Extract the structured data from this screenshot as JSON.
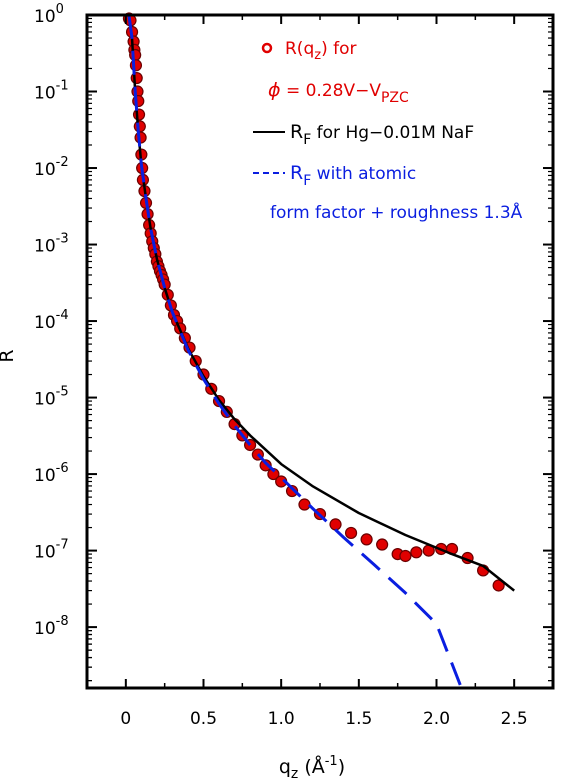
{
  "chart_data": {
    "type": "scatter",
    "xlabel": {
      "main": "q",
      "sub": "z",
      "unit_open": " (Å",
      "unit_sup": "-1",
      "unit_close": ")"
    },
    "ylabel": "R",
    "xlim": [
      -0.25,
      2.75
    ],
    "ylim": [
      1.6e-09,
      1
    ],
    "yscale": "log",
    "x_ticks": [
      0,
      0.5,
      1.0,
      1.5,
      2.0,
      2.5
    ],
    "x_tick_labels": [
      "0",
      "0.5",
      "1.0",
      "1.5",
      "2.0",
      "2.5"
    ],
    "y_ticks": [
      {
        "value": 1,
        "base": "10",
        "exp": "0"
      },
      {
        "value": 0.1,
        "base": "10",
        "exp": "-1"
      },
      {
        "value": 0.01,
        "base": "10",
        "exp": "-2"
      },
      {
        "value": 0.001,
        "base": "10",
        "exp": "-3"
      },
      {
        "value": 0.0001,
        "base": "10",
        "exp": "-4"
      },
      {
        "value": 1e-05,
        "base": "10",
        "exp": "-5"
      },
      {
        "value": 1e-06,
        "base": "10",
        "exp": "-6"
      },
      {
        "value": 1e-07,
        "base": "10",
        "exp": "-7"
      },
      {
        "value": 1e-08,
        "base": "10",
        "exp": "-8"
      }
    ],
    "legend": {
      "placement": "top-right",
      "entries": [
        {
          "marker": "circle",
          "color": "#e00000",
          "line1": {
            "pre": "R(q",
            "sub": "z",
            "post": ") for"
          },
          "line2": {
            "phi": "ϕ",
            "pre": " = 0.28V−V",
            "sub": "PZC"
          }
        },
        {
          "marker": "solid-line",
          "color": "#000000",
          "pre": "R",
          "sub": "F",
          "post": " for Hg−0.01M NaF"
        },
        {
          "marker": "dashed-line",
          "color": "#0a1ee0",
          "pre": "R",
          "sub": "F",
          "post": " with atomic",
          "line2": "form factor + roughness 1.3Å"
        }
      ]
    },
    "series": [
      {
        "kind": "points",
        "color": "#e00000",
        "x": [
          0.02,
          0.03,
          0.04,
          0.05,
          0.055,
          0.06,
          0.065,
          0.07,
          0.075,
          0.08,
          0.085,
          0.09,
          0.095,
          0.1,
          0.105,
          0.11,
          0.12,
          0.13,
          0.14,
          0.15,
          0.16,
          0.17,
          0.18,
          0.19,
          0.2,
          0.21,
          0.22,
          0.23,
          0.24,
          0.25,
          0.27,
          0.29,
          0.31,
          0.33,
          0.35,
          0.38,
          0.41,
          0.45,
          0.5,
          0.55,
          0.6,
          0.65,
          0.7,
          0.75,
          0.8,
          0.85,
          0.9,
          0.95,
          1.0,
          1.07,
          1.15,
          1.25,
          1.35,
          1.45,
          1.55,
          1.65,
          1.75,
          1.8,
          1.87,
          1.95,
          2.03,
          2.1,
          2.2,
          2.3,
          2.4
        ],
        "y": [
          0.9,
          0.85,
          0.6,
          0.45,
          0.35,
          0.3,
          0.22,
          0.15,
          0.1,
          0.075,
          0.05,
          0.035,
          0.025,
          0.015,
          0.01,
          0.007,
          0.005,
          0.0035,
          0.0025,
          0.0018,
          0.0014,
          0.0011,
          0.0009,
          0.00075,
          0.0006,
          0.00052,
          0.00045,
          0.0004,
          0.00035,
          0.0003,
          0.00022,
          0.00016,
          0.00012,
          0.0001,
          8e-05,
          6e-05,
          4.5e-05,
          3e-05,
          2e-05,
          1.3e-05,
          9e-06,
          6.5e-06,
          4.5e-06,
          3.2e-06,
          2.4e-06,
          1.8e-06,
          1.3e-06,
          1e-06,
          8e-07,
          6e-07,
          4e-07,
          3e-07,
          2.2e-07,
          1.7e-07,
          1.4e-07,
          1.2e-07,
          9e-08,
          8.5e-08,
          9.5e-08,
          1e-07,
          1.05e-07,
          1.05e-07,
          8e-08,
          5.5e-08,
          3.5e-08
        ]
      },
      {
        "kind": "solid-line",
        "color": "#000000",
        "x": [
          0.02,
          0.04,
          0.06,
          0.08,
          0.1,
          0.13,
          0.16,
          0.2,
          0.25,
          0.3,
          0.4,
          0.5,
          0.6,
          0.7,
          0.8,
          1.0,
          1.2,
          1.5,
          1.8,
          2.1,
          2.3,
          2.5
        ],
        "y": [
          1.0,
          0.5,
          0.1,
          0.03,
          0.011,
          0.004,
          0.0016,
          0.00065,
          0.00027,
          0.00013,
          4.4e-05,
          1.9e-05,
          9.3e-06,
          5.2e-06,
          3.2e-06,
          1.35e-06,
          7e-07,
          3.1e-07,
          1.6e-07,
          9e-08,
          6.3e-08,
          3e-08
        ]
      },
      {
        "kind": "dashed-line",
        "color": "#0a1ee0",
        "x": [
          0.02,
          0.04,
          0.06,
          0.08,
          0.1,
          0.13,
          0.16,
          0.2,
          0.25,
          0.3,
          0.4,
          0.5,
          0.6,
          0.7,
          0.8,
          0.9,
          1.0,
          1.2,
          1.4,
          1.6,
          1.8,
          2.0,
          2.16
        ],
        "y": [
          1.0,
          0.5,
          0.1,
          0.03,
          0.011,
          0.004,
          0.0016,
          0.00065,
          0.00027,
          0.00013,
          4.2e-05,
          1.75e-05,
          8.3e-06,
          4.3e-06,
          2.4e-06,
          1.4e-06,
          9e-07,
          3.6e-07,
          1.5e-07,
          6.5e-08,
          2.8e-08,
          1.1e-08,
          1.6e-09
        ]
      }
    ]
  }
}
